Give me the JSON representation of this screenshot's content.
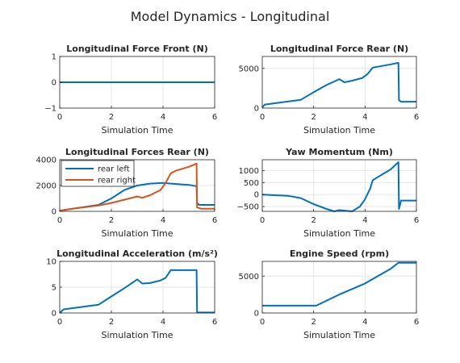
{
  "figure": {
    "suptitle": "Model Dynamics - Longitudinal"
  },
  "chart_data": [
    {
      "type": "line",
      "title": "Longitudinal Force Front (N)",
      "xlabel": "Simulation Time",
      "ylabel": "",
      "xlim": [
        0,
        6
      ],
      "ylim": [
        -1,
        1
      ],
      "xticks": [
        0,
        2,
        4,
        6
      ],
      "yticks": [
        -1,
        0,
        1
      ],
      "grid": true,
      "series": [
        {
          "color": "#0072BD",
          "x": [
            0,
            6
          ],
          "y": [
            0,
            0
          ]
        }
      ]
    },
    {
      "type": "line",
      "title": "Longitudinal Force Rear (N)",
      "xlabel": "Simulation Time",
      "ylabel": "",
      "xlim": [
        0,
        6
      ],
      "ylim": [
        0,
        6500
      ],
      "xticks": [
        0,
        2,
        4,
        6
      ],
      "yticks": [
        0,
        5000
      ],
      "grid": true,
      "series": [
        {
          "color": "#0072BD",
          "x": [
            0,
            0.1,
            1.5,
            2,
            2.5,
            3.0,
            3.2,
            3.5,
            3.9,
            4.1,
            4.3,
            5.0,
            5.3,
            5.32,
            5.4,
            6
          ],
          "y": [
            100,
            450,
            1050,
            2000,
            2900,
            3650,
            3250,
            3450,
            3800,
            4300,
            5100,
            5500,
            5700,
            1000,
            800,
            800
          ]
        }
      ]
    },
    {
      "type": "line",
      "title": "Longitudinal Forces Rear (N)",
      "xlabel": "Simulation Time",
      "ylabel": "",
      "xlim": [
        0,
        6
      ],
      "ylim": [
        0,
        4000
      ],
      "xticks": [
        0,
        2,
        4,
        6
      ],
      "yticks": [
        0,
        2000,
        4000
      ],
      "grid": true,
      "legend": {
        "position": "top-left",
        "entries": [
          "rear left",
          "rear right"
        ]
      },
      "series": [
        {
          "name": "rear left",
          "color": "#0072BD",
          "x": [
            0,
            0.5,
            1.5,
            2.0,
            2.5,
            3.0,
            3.5,
            4.0,
            4.3,
            5.0,
            5.3,
            5.32,
            5.4,
            6
          ],
          "y": [
            50,
            200,
            500,
            1000,
            1650,
            2000,
            2150,
            2200,
            2150,
            2050,
            1950,
            650,
            500,
            500
          ]
        },
        {
          "name": "rear right",
          "color": "#D95319",
          "x": [
            0,
            0.5,
            1.5,
            2.0,
            2.5,
            3.0,
            3.2,
            3.5,
            3.9,
            4.1,
            4.3,
            4.5,
            5.0,
            5.3,
            5.32,
            5.5,
            6
          ],
          "y": [
            50,
            200,
            450,
            650,
            900,
            1150,
            1050,
            1250,
            1650,
            2200,
            2950,
            3150,
            3450,
            3700,
            300,
            200,
            200
          ]
        }
      ]
    },
    {
      "type": "line",
      "title": "Yaw Momentum (Nm)",
      "xlabel": "Simulation Time",
      "ylabel": "",
      "xlim": [
        0,
        6
      ],
      "ylim": [
        -700,
        1450
      ],
      "xticks": [
        0,
        2,
        4,
        6
      ],
      "yticks": [
        -500,
        0,
        500,
        1000
      ],
      "grid": true,
      "series": [
        {
          "color": "#0072BD",
          "x": [
            0,
            1.0,
            1.5,
            2.0,
            2.5,
            2.8,
            3.0,
            3.5,
            3.8,
            4.0,
            4.2,
            4.3,
            5.0,
            5.3,
            5.32,
            5.4,
            6
          ],
          "y": [
            0,
            -50,
            -150,
            -400,
            -600,
            -700,
            -650,
            -700,
            -500,
            -200,
            250,
            600,
            1050,
            1350,
            -600,
            -250,
            -250
          ]
        }
      ]
    },
    {
      "type": "line",
      "title": "Longitudinal Acceleration (m/s²)",
      "xlabel": "Simulation Time",
      "ylabel": "",
      "xlim": [
        0,
        6
      ],
      "ylim": [
        0,
        10
      ],
      "xticks": [
        0,
        2,
        4,
        6
      ],
      "yticks": [
        0,
        5,
        10
      ],
      "grid": true,
      "series": [
        {
          "color": "#0072BD",
          "x": [
            0,
            0.15,
            1.5,
            2.0,
            2.5,
            3.0,
            3.2,
            3.5,
            3.9,
            4.1,
            4.3,
            5.0,
            5.3,
            5.32,
            6
          ],
          "y": [
            0,
            0.7,
            1.6,
            3.2,
            4.8,
            6.5,
            5.7,
            5.8,
            6.3,
            6.8,
            8.3,
            8.3,
            8.3,
            0.1,
            0.1
          ]
        }
      ]
    },
    {
      "type": "line",
      "title": "Engine Speed (rpm)",
      "xlabel": "Simulation Time",
      "ylabel": "",
      "xlim": [
        0,
        6
      ],
      "ylim": [
        0,
        7000
      ],
      "xticks": [
        0,
        2,
        4,
        6
      ],
      "yticks": [
        0,
        5000
      ],
      "grid": true,
      "series": [
        {
          "color": "#0072BD",
          "x": [
            0,
            2.1,
            3.0,
            4.0,
            5.0,
            5.3,
            6
          ],
          "y": [
            1000,
            1000,
            2500,
            4000,
            6000,
            6800,
            6800
          ]
        }
      ]
    }
  ]
}
